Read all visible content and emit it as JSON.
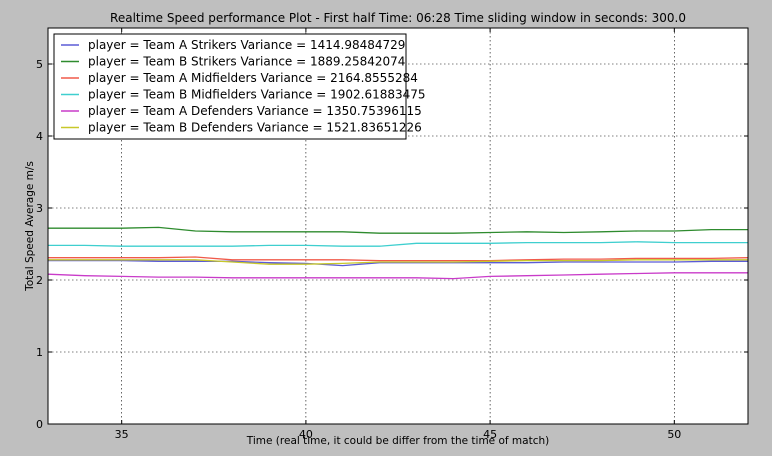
{
  "chart_data": {
    "type": "line",
    "title": "Realtime Speed performance Plot - First half Time: 06:28 Time sliding window in seconds: 300.0",
    "xlabel": "Time (real time, it could be differ from the time of match)",
    "ylabel": "Total Speed Average m/s",
    "xlim": [
      33,
      52
    ],
    "ylim": [
      0,
      5.5
    ],
    "x_ticks": [
      35,
      40,
      45,
      50
    ],
    "y_ticks": [
      0,
      1,
      2,
      3,
      4,
      5
    ],
    "grid": true,
    "legend_position": "top-left",
    "x": [
      33,
      34,
      35,
      36,
      37,
      38,
      39,
      40,
      41,
      42,
      43,
      44,
      45,
      46,
      47,
      48,
      49,
      50,
      51,
      52
    ],
    "series": [
      {
        "name": "player = Team A Strikers Variance = 1414.98484729",
        "color": "#5b5bd6",
        "values": [
          2.27,
          2.27,
          2.27,
          2.26,
          2.26,
          2.26,
          2.24,
          2.23,
          2.2,
          2.24,
          2.24,
          2.24,
          2.24,
          2.24,
          2.25,
          2.25,
          2.25,
          2.25,
          2.26,
          2.26
        ]
      },
      {
        "name": "player = Team B Strikers Variance = 1889.25842074",
        "color": "#2e8b2e",
        "values": [
          2.72,
          2.72,
          2.72,
          2.73,
          2.68,
          2.67,
          2.67,
          2.67,
          2.67,
          2.65,
          2.65,
          2.65,
          2.66,
          2.67,
          2.66,
          2.67,
          2.68,
          2.68,
          2.7,
          2.7
        ]
      },
      {
        "name": "player = Team A Midfielders Variance = 2164.8555284",
        "color": "#f05a4a",
        "values": [
          2.31,
          2.31,
          2.31,
          2.31,
          2.32,
          2.28,
          2.28,
          2.28,
          2.28,
          2.27,
          2.27,
          2.27,
          2.27,
          2.28,
          2.29,
          2.29,
          2.3,
          2.3,
          2.3,
          2.31
        ]
      },
      {
        "name": "player = Team B Midfielders Variance = 1902.61883475",
        "color": "#3fcfcf",
        "values": [
          2.48,
          2.48,
          2.47,
          2.47,
          2.47,
          2.47,
          2.48,
          2.48,
          2.47,
          2.47,
          2.51,
          2.51,
          2.51,
          2.52,
          2.52,
          2.52,
          2.53,
          2.52,
          2.52,
          2.52
        ]
      },
      {
        "name": "player = Team A Defenders Variance = 1350.75396115",
        "color": "#c93bc9",
        "values": [
          2.08,
          2.06,
          2.05,
          2.04,
          2.04,
          2.03,
          2.03,
          2.03,
          2.03,
          2.03,
          2.03,
          2.02,
          2.05,
          2.06,
          2.07,
          2.08,
          2.09,
          2.1,
          2.1,
          2.1
        ]
      },
      {
        "name": "player = Team B Defenders Variance = 1521.83651226",
        "color": "#c8c82a",
        "values": [
          2.28,
          2.28,
          2.28,
          2.28,
          2.28,
          2.25,
          2.22,
          2.22,
          2.23,
          2.25,
          2.25,
          2.25,
          2.26,
          2.27,
          2.27,
          2.27,
          2.28,
          2.28,
          2.28,
          2.28
        ]
      }
    ]
  }
}
